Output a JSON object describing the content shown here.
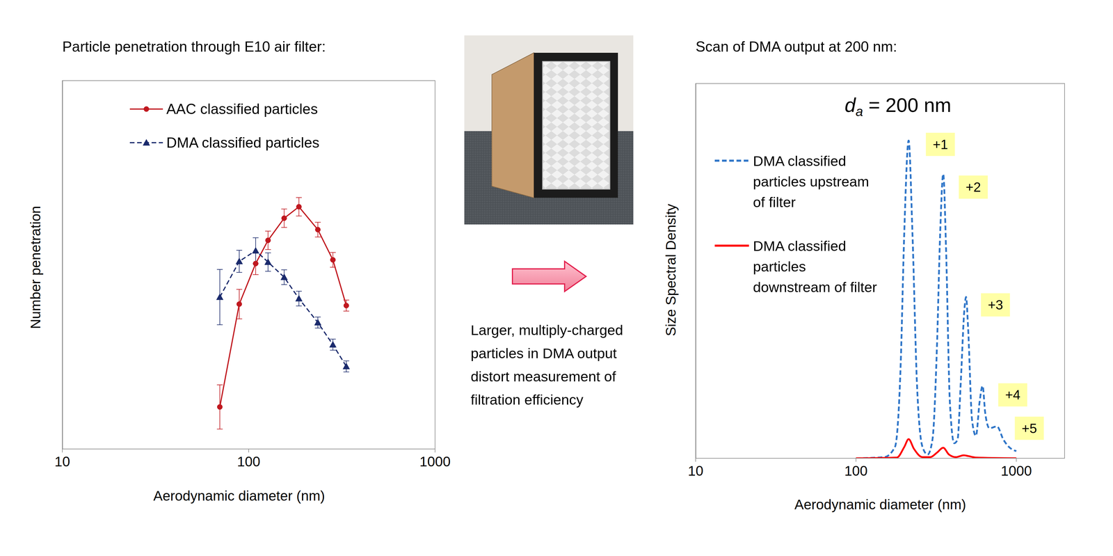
{
  "chart_data": [
    {
      "type": "line",
      "title": "Particle penetration through E10 air filter:",
      "x_label": "Aerodynamic diameter (nm)",
      "y_label": "Number penetration",
      "log": "x",
      "grid": false,
      "legend": "upper left",
      "tick_labels": "x",
      "xlim": [
        10,
        1000
      ],
      "xticks": [
        10,
        100,
        1000
      ],
      "ylim": [
        0,
        100
      ],
      "yticks": [
        0,
        10,
        20,
        30,
        40,
        50,
        60,
        70,
        80,
        90,
        100
      ],
      "series": [
        {
          "name": "AAC classified particles",
          "color": "#c0181f",
          "marker": "circle",
          "line_style": "solid",
          "x": [
            70,
            89,
            109,
            127,
            155,
            186,
            235,
            283,
            334
          ],
          "values": [
            11.4,
            39.3,
            50.3,
            56.6,
            62.6,
            65.7,
            59.5,
            51.3,
            38.9
          ],
          "error": [
            6,
            4,
            3,
            2.5,
            2.5,
            2.5,
            2,
            2,
            1.5
          ]
        },
        {
          "name": "DMA classified particles",
          "color": "#1a2a6c",
          "marker": "triangle",
          "line_style": "dashed",
          "x": [
            70,
            89,
            109,
            127,
            155,
            186,
            235,
            283,
            334
          ],
          "values": [
            41.2,
            50.9,
            53.8,
            50.7,
            46.6,
            40.8,
            34.3,
            28.3,
            22.4
          ],
          "error": [
            7.5,
            3,
            3.5,
            2.5,
            2,
            2,
            1.5,
            1.5,
            1.5
          ]
        }
      ]
    },
    {
      "type": "line",
      "title": "Scan of DMA output at 200 nm:",
      "subtitle": "da = 200 nm",
      "x_label": "Aerodynamic diameter (nm)",
      "y_label": "Size Spectral Density",
      "log": "x",
      "grid": false,
      "legend": "upper left",
      "tick_labels": "x",
      "xlim": [
        10,
        2000
      ],
      "xticks": [
        10,
        100,
        1000
      ],
      "ylim": [
        0,
        100
      ],
      "yticks": [
        0,
        10,
        20,
        30,
        40,
        50,
        60,
        70,
        80,
        90,
        100
      ],
      "series": [
        {
          "name": "DMA classified particles upstream of filter",
          "color": "#2e75c8",
          "line_style": "dashed",
          "x": [
            100,
            150,
            175,
            190,
            200,
            213,
            225,
            240,
            260,
            280,
            300,
            320,
            335,
            350,
            365,
            385,
            410,
            430,
            450,
            475,
            486,
            500,
            530,
            560,
            590,
            616,
            640,
            680,
            757,
            830,
            900,
            1000
          ],
          "values": [
            0,
            0.3,
            3,
            25,
            60,
            84.7,
            60,
            20,
            3,
            1,
            5,
            30,
            60,
            75.8,
            55,
            15,
            4,
            5,
            20,
            40,
            43,
            35,
            10,
            6,
            15,
            19.3,
            12,
            8,
            8.5,
            5,
            3,
            1.9
          ]
        },
        {
          "name": "DMA classified particles downstream of filter",
          "color": "#ff0000",
          "line_style": "solid",
          "x": [
            100,
            180,
            200,
            213,
            230,
            260,
            290,
            320,
            350,
            380,
            420,
            470,
            500,
            560,
            1000
          ],
          "values": [
            0,
            0.2,
            3,
            5.1,
            2.5,
            0.3,
            0.3,
            1.5,
            2.8,
            1,
            0.3,
            0.8,
            0.6,
            0.2,
            0
          ]
        }
      ],
      "annotations": [
        {
          "text": "+1",
          "x": 336,
          "y": 83.7
        },
        {
          "text": "+2",
          "x": 539,
          "y": 72.3
        },
        {
          "text": "+3",
          "x": 741,
          "y": 40.9
        },
        {
          "text": "+4",
          "x": 950,
          "y": 16.9
        },
        {
          "text": "+5",
          "x": 1205,
          "y": 8
        }
      ]
    }
  ],
  "caption": "Larger, multiply-charged particles in DMA output distort measurement of filtration efficiency"
}
